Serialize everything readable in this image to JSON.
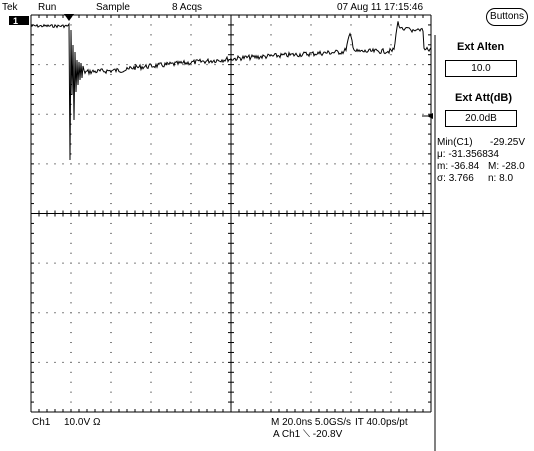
{
  "status_bar": {
    "brand": "Tek",
    "run_state": "Run",
    "acq_mode": "Sample",
    "acq_count": "8 Acqs",
    "datetime": "07 Aug 11 17:15:46"
  },
  "side_menu": {
    "buttons_label": "Buttons",
    "ext_atten_label": "Ext Alten",
    "ext_atten_value": "10.0",
    "ext_att_db_label": "Ext Att(dB)",
    "ext_att_db_value": "20.0dB"
  },
  "measurements": {
    "min_label": "Min(C1)",
    "min_value": "-29.25V",
    "mu": "μ: -31.356834",
    "m": "m: -36.84",
    "M": "M: -28.0",
    "sigma": "σ: 3.766",
    "n": "n: 8.0"
  },
  "bottom_bar": {
    "channel": "Ch1",
    "volts_div": "10.0V",
    "coupling": "Ω",
    "timebase": "M 20.0ns 5.0GS/s",
    "interp": "IT 40.0ps/pt",
    "trigger": "A  Ch1  ⟍  -20.8V"
  },
  "channel_marker": "1",
  "colors": {
    "trace": "#000000",
    "grid": "#000000",
    "background": "#ffffff"
  }
}
